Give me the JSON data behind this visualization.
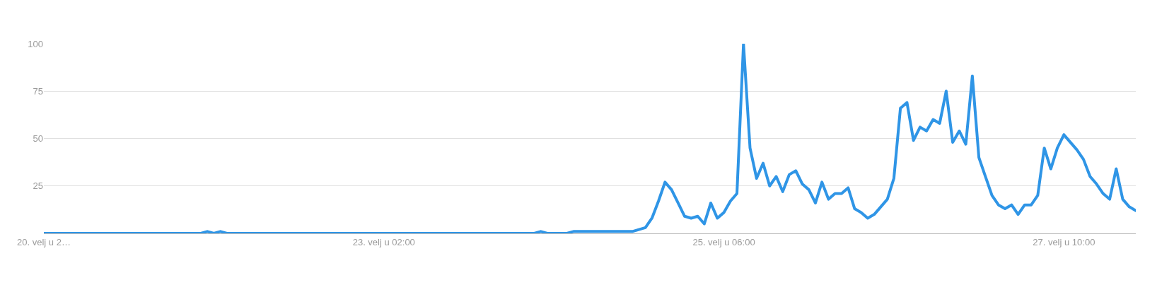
{
  "chart_data": {
    "type": "line",
    "categories": [
      "20. velj u 2…",
      null,
      null,
      null,
      null,
      null,
      null,
      null,
      null,
      null,
      null,
      null,
      null,
      null,
      null,
      null,
      null,
      null,
      null,
      null,
      null,
      null,
      null,
      null,
      null,
      null,
      null,
      null,
      null,
      null,
      null,
      null,
      null,
      null,
      null,
      null,
      null,
      null,
      null,
      null,
      null,
      null,
      null,
      null,
      null,
      null,
      null,
      null,
      null,
      null,
      null,
      null,
      "23. velj u 02:00",
      null,
      null,
      null,
      null,
      null,
      null,
      null,
      null,
      null,
      null,
      null,
      null,
      null,
      null,
      null,
      null,
      null,
      null,
      null,
      null,
      null,
      null,
      null,
      null,
      null,
      null,
      null,
      null,
      null,
      null,
      null,
      null,
      null,
      null,
      null,
      null,
      null,
      null,
      null,
      null,
      null,
      null,
      null,
      null,
      null,
      null,
      null,
      null,
      null,
      null,
      null,
      "25. velj u 06:00",
      null,
      null,
      null,
      null,
      null,
      null,
      null,
      null,
      null,
      null,
      null,
      null,
      null,
      null,
      null,
      null,
      null,
      null,
      null,
      null,
      null,
      null,
      null,
      null,
      null,
      null,
      null,
      null,
      null,
      null,
      null,
      null,
      null,
      null,
      null,
      null,
      null,
      null,
      null,
      null,
      null,
      null,
      null,
      null,
      null,
      null,
      null,
      null,
      null,
      null,
      null,
      "27. velj u 10:00",
      null,
      null,
      null,
      null,
      null,
      null,
      null,
      null,
      null,
      null,
      null
    ],
    "series": [
      {
        "color": "#2f95e6",
        "values": [
          0,
          0,
          0,
          0,
          0,
          0,
          0,
          0,
          0,
          0,
          0,
          0,
          0,
          0,
          0,
          0,
          0,
          0,
          0,
          0,
          0,
          0,
          0,
          0,
          0,
          1,
          0,
          1,
          0,
          0,
          0,
          0,
          0,
          0,
          0,
          0,
          0,
          0,
          0,
          0,
          0,
          0,
          0,
          0,
          0,
          0,
          0,
          0,
          0,
          0,
          0,
          0,
          0,
          0,
          0,
          0,
          0,
          0,
          0,
          0,
          0,
          0,
          0,
          0,
          0,
          0,
          0,
          0,
          0,
          0,
          0,
          0,
          0,
          0,
          0,
          0,
          1,
          0,
          0,
          0,
          0,
          1,
          1,
          1,
          1,
          1,
          1,
          1,
          1,
          1,
          1,
          2,
          3,
          8,
          17,
          27,
          23,
          16,
          9,
          8,
          9,
          5,
          16,
          8,
          11,
          17,
          21,
          100,
          45,
          29,
          37,
          25,
          30,
          22,
          31,
          33,
          26,
          23,
          16,
          27,
          18,
          21,
          21,
          24,
          13,
          11,
          8,
          10,
          14,
          18,
          29,
          66,
          69,
          49,
          56,
          54,
          60,
          58,
          75,
          48,
          54,
          47,
          83,
          40,
          30,
          20,
          15,
          13,
          15,
          10,
          15,
          15,
          20,
          45,
          34,
          45,
          52,
          48,
          44,
          39,
          30,
          26,
          21,
          18,
          34,
          18,
          14,
          12
        ]
      }
    ],
    "ylim": [
      0,
      100
    ],
    "yticks": [
      25,
      50,
      75,
      100
    ],
    "grid": "y",
    "line_style": "solid"
  }
}
